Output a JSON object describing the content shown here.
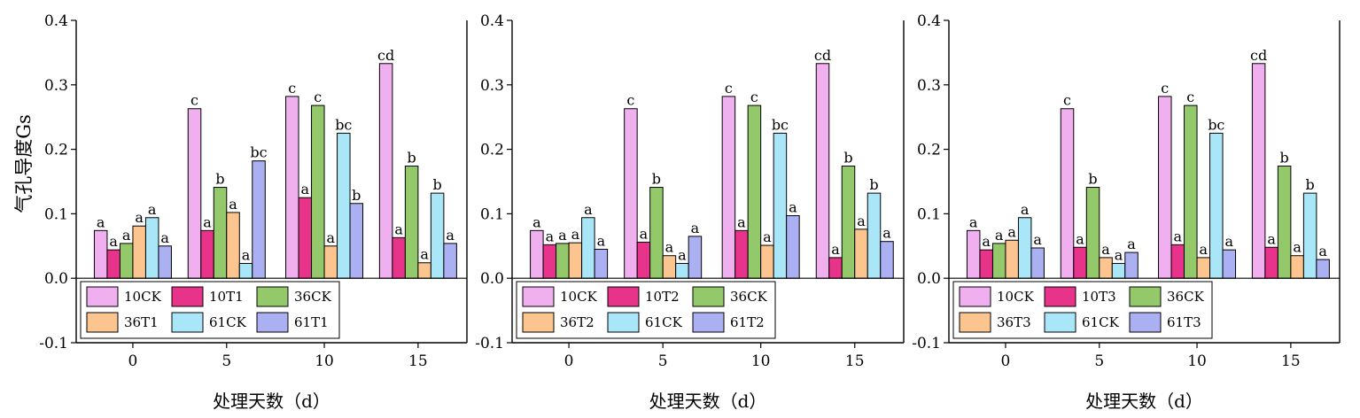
{
  "colors": {
    "10CK": "#f0b0f0",
    "10T": "#e8338a",
    "36CK": "#93c96b",
    "36T": "#fcc58f",
    "61CK": "#a9e6f7",
    "61T": "#aab0f2"
  },
  "chart_data": [
    {
      "type": "bar",
      "xlabel": "处理天数（d）",
      "ylabel": "气孔导度Gs",
      "ylim": [
        -0.1,
        0.4
      ],
      "yticks": [
        "-0.1",
        "0.0",
        "0.1",
        "0.2",
        "0.3",
        "0.4"
      ],
      "categories": [
        "0",
        "5",
        "10",
        "15"
      ],
      "grid": false,
      "legend_position": "bottom-left",
      "series": [
        {
          "name": "10CK",
          "color_key": "10CK",
          "values": [
            0.074,
            0.263,
            0.282,
            0.333
          ],
          "labels": [
            "a",
            "c",
            "c",
            "cd"
          ]
        },
        {
          "name": "10T1",
          "color_key": "10T",
          "values": [
            0.044,
            0.074,
            0.125,
            0.063
          ],
          "labels": [
            "a",
            "a",
            "a",
            "a"
          ]
        },
        {
          "name": "36CK",
          "color_key": "36CK",
          "values": [
            0.054,
            0.141,
            0.268,
            0.174
          ],
          "labels": [
            "a",
            "b",
            "c",
            "b"
          ]
        },
        {
          "name": "36T1",
          "color_key": "36T",
          "values": [
            0.081,
            0.102,
            0.05,
            0.024
          ],
          "labels": [
            "a",
            "a",
            "a",
            "a"
          ]
        },
        {
          "name": "61CK",
          "color_key": "61CK",
          "values": [
            0.094,
            0.023,
            0.225,
            0.132
          ],
          "labels": [
            "a",
            "a",
            "bc",
            "b"
          ]
        },
        {
          "name": "61T1",
          "color_key": "61T",
          "values": [
            0.05,
            0.182,
            0.116,
            0.054
          ],
          "labels": [
            "a",
            "bc",
            "b",
            "a"
          ]
        }
      ]
    },
    {
      "type": "bar",
      "xlabel": "处理天数（d）",
      "ylabel": "",
      "ylim": [
        -0.1,
        0.4
      ],
      "yticks": [
        "-0.1",
        "0.0",
        "0.1",
        "0.2",
        "0.3",
        "0.4"
      ],
      "categories": [
        "0",
        "5",
        "10",
        "15"
      ],
      "grid": false,
      "legend_position": "bottom-left",
      "series": [
        {
          "name": "10CK",
          "color_key": "10CK",
          "values": [
            0.074,
            0.263,
            0.282,
            0.333
          ],
          "labels": [
            "a",
            "c",
            "c",
            "cd"
          ]
        },
        {
          "name": "10T2",
          "color_key": "10T",
          "values": [
            0.052,
            0.056,
            0.074,
            0.032
          ],
          "labels": [
            "a",
            "a",
            "a",
            "a"
          ]
        },
        {
          "name": "36CK",
          "color_key": "36CK",
          "values": [
            0.054,
            0.141,
            0.268,
            0.174
          ],
          "labels": [
            "a",
            "b",
            "c",
            "b"
          ]
        },
        {
          "name": "36T2",
          "color_key": "36T",
          "values": [
            0.055,
            0.035,
            0.051,
            0.076
          ],
          "labels": [
            "a",
            "a",
            "a",
            "a"
          ]
        },
        {
          "name": "61CK",
          "color_key": "61CK",
          "values": [
            0.094,
            0.023,
            0.225,
            0.132
          ],
          "labels": [
            "a",
            "a",
            "bc",
            "b"
          ]
        },
        {
          "name": "61T2",
          "color_key": "61T",
          "values": [
            0.045,
            0.065,
            0.097,
            0.057
          ],
          "labels": [
            "a",
            "a",
            "a",
            "a"
          ]
        }
      ]
    },
    {
      "type": "bar",
      "xlabel": "处理天数（d）",
      "ylabel": "",
      "ylim": [
        -0.1,
        0.4
      ],
      "yticks": [
        "-0.1",
        "0.0",
        "0.1",
        "0.2",
        "0.3",
        "0.4"
      ],
      "categories": [
        "0",
        "5",
        "10",
        "15"
      ],
      "grid": false,
      "legend_position": "bottom-left",
      "series": [
        {
          "name": "10CK",
          "color_key": "10CK",
          "values": [
            0.074,
            0.263,
            0.282,
            0.333
          ],
          "labels": [
            "a",
            "c",
            "c",
            "cd"
          ]
        },
        {
          "name": "10T3",
          "color_key": "10T",
          "values": [
            0.044,
            0.048,
            0.052,
            0.048
          ],
          "labels": [
            "a",
            "a",
            "a",
            "a"
          ]
        },
        {
          "name": "36CK",
          "color_key": "36CK",
          "values": [
            0.054,
            0.141,
            0.268,
            0.174
          ],
          "labels": [
            "a",
            "b",
            "c",
            "b"
          ]
        },
        {
          "name": "36T3",
          "color_key": "36T",
          "values": [
            0.059,
            0.032,
            0.032,
            0.035
          ],
          "labels": [
            "a",
            "a",
            "a",
            "a"
          ]
        },
        {
          "name": "61CK",
          "color_key": "61CK",
          "values": [
            0.094,
            0.023,
            0.225,
            0.132
          ],
          "labels": [
            "a",
            "a",
            "bc",
            "b"
          ]
        },
        {
          "name": "61T3",
          "color_key": "61T",
          "values": [
            0.047,
            0.04,
            0.044,
            0.029
          ],
          "labels": [
            "a",
            "a",
            "a",
            "a"
          ]
        }
      ]
    }
  ]
}
